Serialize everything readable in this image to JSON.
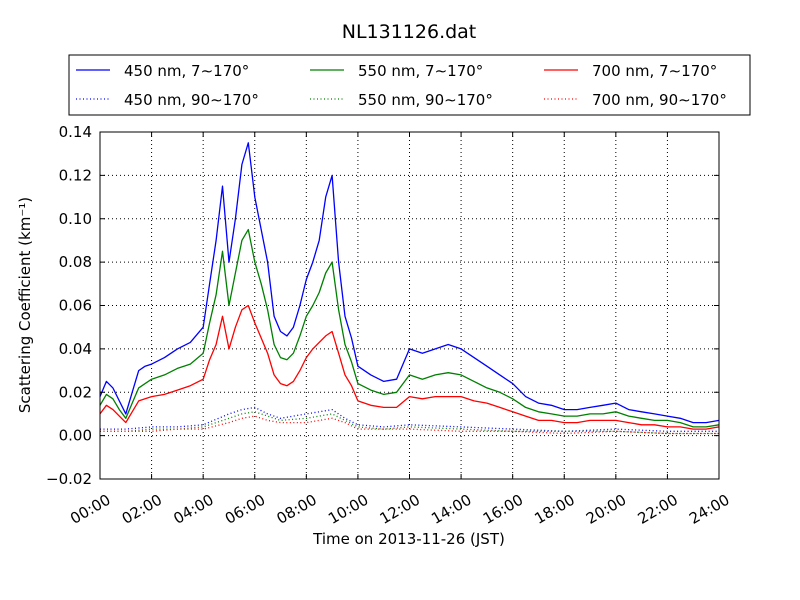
{
  "chart_data": {
    "type": "line",
    "title": "NL131126.dat",
    "xlabel": "Time on 2013-11-26 (JST)",
    "ylabel": "Scattering Coefficient (km⁻¹)",
    "x_tick_labels": [
      "00:00",
      "02:00",
      "04:00",
      "06:00",
      "08:00",
      "10:00",
      "12:00",
      "14:00",
      "16:00",
      "18:00",
      "20:00",
      "22:00",
      "24:00"
    ],
    "y_tick_labels": [
      "−0.02",
      "0.00",
      "0.02",
      "0.04",
      "0.06",
      "0.08",
      "0.10",
      "0.12",
      "0.14"
    ],
    "xlim": [
      "00:00",
      "24:00"
    ],
    "ylim": [
      -0.02,
      0.14
    ],
    "grid": true,
    "legend_position": "top",
    "series": [
      {
        "name": "450 nm, 7∼170°",
        "color": "#0000ff",
        "style": "solid",
        "x": [
          "00:00",
          "00:15",
          "00:30",
          "00:45",
          "01:00",
          "01:15",
          "01:30",
          "01:45",
          "02:00",
          "02:30",
          "03:00",
          "03:30",
          "04:00",
          "04:15",
          "04:30",
          "04:45",
          "05:00",
          "05:15",
          "05:30",
          "05:45",
          "06:00",
          "06:15",
          "06:30",
          "06:45",
          "07:00",
          "07:15",
          "07:30",
          "07:45",
          "08:00",
          "08:15",
          "08:30",
          "08:45",
          "09:00",
          "09:15",
          "09:30",
          "09:45",
          "10:00",
          "10:30",
          "11:00",
          "11:30",
          "12:00",
          "12:30",
          "13:00",
          "13:30",
          "14:00",
          "14:30",
          "15:00",
          "15:30",
          "16:00",
          "16:30",
          "17:00",
          "17:30",
          "18:00",
          "18:30",
          "19:00",
          "19:30",
          "20:00",
          "20:30",
          "21:00",
          "21:30",
          "22:00",
          "22:30",
          "23:00",
          "23:30",
          "24:00"
        ],
        "values": [
          0.018,
          0.025,
          0.022,
          0.016,
          0.01,
          0.02,
          0.03,
          0.032,
          0.033,
          0.036,
          0.04,
          0.043,
          0.05,
          0.07,
          0.09,
          0.115,
          0.08,
          0.1,
          0.125,
          0.135,
          0.11,
          0.095,
          0.08,
          0.055,
          0.048,
          0.046,
          0.05,
          0.06,
          0.072,
          0.08,
          0.09,
          0.11,
          0.12,
          0.08,
          0.055,
          0.045,
          0.032,
          0.028,
          0.025,
          0.026,
          0.04,
          0.038,
          0.04,
          0.042,
          0.04,
          0.036,
          0.032,
          0.028,
          0.024,
          0.018,
          0.015,
          0.014,
          0.012,
          0.012,
          0.013,
          0.014,
          0.015,
          0.012,
          0.011,
          0.01,
          0.009,
          0.008,
          0.006,
          0.006,
          0.007
        ]
      },
      {
        "name": "550 nm, 7∼170°",
        "color": "#008000",
        "style": "solid",
        "x": [
          "00:00",
          "00:15",
          "00:30",
          "00:45",
          "01:00",
          "01:15",
          "01:30",
          "01:45",
          "02:00",
          "02:30",
          "03:00",
          "03:30",
          "04:00",
          "04:15",
          "04:30",
          "04:45",
          "05:00",
          "05:15",
          "05:30",
          "05:45",
          "06:00",
          "06:15",
          "06:30",
          "06:45",
          "07:00",
          "07:15",
          "07:30",
          "07:45",
          "08:00",
          "08:15",
          "08:30",
          "08:45",
          "09:00",
          "09:15",
          "09:30",
          "09:45",
          "10:00",
          "10:30",
          "11:00",
          "11:30",
          "12:00",
          "12:30",
          "13:00",
          "13:30",
          "14:00",
          "14:30",
          "15:00",
          "15:30",
          "16:00",
          "16:30",
          "17:00",
          "17:30",
          "18:00",
          "18:30",
          "19:00",
          "19:30",
          "20:00",
          "20:30",
          "21:00",
          "21:30",
          "22:00",
          "22:30",
          "23:00",
          "23:30",
          "24:00"
        ],
        "values": [
          0.014,
          0.019,
          0.017,
          0.012,
          0.008,
          0.015,
          0.022,
          0.024,
          0.026,
          0.028,
          0.031,
          0.033,
          0.038,
          0.052,
          0.065,
          0.085,
          0.06,
          0.075,
          0.09,
          0.095,
          0.08,
          0.07,
          0.058,
          0.042,
          0.036,
          0.035,
          0.038,
          0.046,
          0.055,
          0.06,
          0.066,
          0.075,
          0.08,
          0.058,
          0.042,
          0.034,
          0.024,
          0.021,
          0.019,
          0.02,
          0.028,
          0.026,
          0.028,
          0.029,
          0.028,
          0.025,
          0.022,
          0.02,
          0.017,
          0.013,
          0.011,
          0.01,
          0.009,
          0.009,
          0.01,
          0.01,
          0.011,
          0.009,
          0.008,
          0.007,
          0.007,
          0.006,
          0.004,
          0.004,
          0.005
        ]
      },
      {
        "name": "700 nm, 7∼170°",
        "color": "#ff0000",
        "style": "solid",
        "x": [
          "00:00",
          "00:15",
          "00:30",
          "00:45",
          "01:00",
          "01:15",
          "01:30",
          "01:45",
          "02:00",
          "02:30",
          "03:00",
          "03:30",
          "04:00",
          "04:15",
          "04:30",
          "04:45",
          "05:00",
          "05:15",
          "05:30",
          "05:45",
          "06:00",
          "06:15",
          "06:30",
          "06:45",
          "07:00",
          "07:15",
          "07:30",
          "07:45",
          "08:00",
          "08:15",
          "08:30",
          "08:45",
          "09:00",
          "09:15",
          "09:30",
          "09:45",
          "10:00",
          "10:30",
          "11:00",
          "11:30",
          "12:00",
          "12:30",
          "13:00",
          "13:30",
          "14:00",
          "14:30",
          "15:00",
          "15:30",
          "16:00",
          "16:30",
          "17:00",
          "17:30",
          "18:00",
          "18:30",
          "19:00",
          "19:30",
          "20:00",
          "20:30",
          "21:00",
          "21:30",
          "22:00",
          "22:30",
          "23:00",
          "23:30",
          "24:00"
        ],
        "values": [
          0.01,
          0.014,
          0.012,
          0.009,
          0.006,
          0.011,
          0.016,
          0.017,
          0.018,
          0.019,
          0.021,
          0.023,
          0.026,
          0.035,
          0.042,
          0.055,
          0.04,
          0.05,
          0.058,
          0.06,
          0.052,
          0.045,
          0.038,
          0.028,
          0.024,
          0.023,
          0.025,
          0.03,
          0.036,
          0.04,
          0.043,
          0.046,
          0.048,
          0.038,
          0.028,
          0.023,
          0.016,
          0.014,
          0.013,
          0.013,
          0.018,
          0.017,
          0.018,
          0.018,
          0.018,
          0.016,
          0.015,
          0.013,
          0.011,
          0.009,
          0.007,
          0.007,
          0.006,
          0.006,
          0.007,
          0.007,
          0.007,
          0.006,
          0.005,
          0.005,
          0.004,
          0.004,
          0.003,
          0.003,
          0.004
        ]
      },
      {
        "name": "450 nm, 90∼170°",
        "color": "#0000ff",
        "style": "dotted",
        "x": [
          "00:00",
          "01:00",
          "02:00",
          "03:00",
          "04:00",
          "05:00",
          "05:30",
          "06:00",
          "06:30",
          "07:00",
          "08:00",
          "08:30",
          "09:00",
          "09:30",
          "10:00",
          "11:00",
          "12:00",
          "14:00",
          "16:00",
          "18:00",
          "20:00",
          "22:00",
          "24:00"
        ],
        "values": [
          0.003,
          0.003,
          0.004,
          0.004,
          0.005,
          0.01,
          0.012,
          0.013,
          0.01,
          0.008,
          0.01,
          0.011,
          0.012,
          0.008,
          0.005,
          0.004,
          0.005,
          0.004,
          0.003,
          0.002,
          0.003,
          0.002,
          0.002
        ]
      },
      {
        "name": "550 nm, 90∼170°",
        "color": "#008000",
        "style": "dotted",
        "x": [
          "00:00",
          "01:00",
          "02:00",
          "03:00",
          "04:00",
          "05:00",
          "05:30",
          "06:00",
          "06:30",
          "07:00",
          "08:00",
          "08:30",
          "09:00",
          "09:30",
          "10:00",
          "11:00",
          "12:00",
          "14:00",
          "16:00",
          "18:00",
          "20:00",
          "22:00",
          "24:00"
        ],
        "values": [
          0.002,
          0.002,
          0.003,
          0.003,
          0.004,
          0.008,
          0.01,
          0.011,
          0.009,
          0.007,
          0.008,
          0.009,
          0.01,
          0.007,
          0.004,
          0.003,
          0.004,
          0.003,
          0.002,
          0.002,
          0.002,
          0.001,
          0.001
        ]
      },
      {
        "name": "700 nm, 90∼170°",
        "color": "#ff0000",
        "style": "dotted",
        "x": [
          "00:00",
          "01:00",
          "02:00",
          "03:00",
          "04:00",
          "05:00",
          "05:30",
          "06:00",
          "06:30",
          "07:00",
          "08:00",
          "08:30",
          "09:00",
          "09:30",
          "10:00",
          "11:00",
          "12:00",
          "14:00",
          "16:00",
          "18:00",
          "20:00",
          "22:00",
          "24:00"
        ],
        "values": [
          0.002,
          0.002,
          0.002,
          0.003,
          0.003,
          0.006,
          0.008,
          0.009,
          0.007,
          0.006,
          0.006,
          0.007,
          0.008,
          0.006,
          0.003,
          0.003,
          0.003,
          0.002,
          0.002,
          0.001,
          0.002,
          0.001,
          0.001
        ]
      }
    ]
  }
}
